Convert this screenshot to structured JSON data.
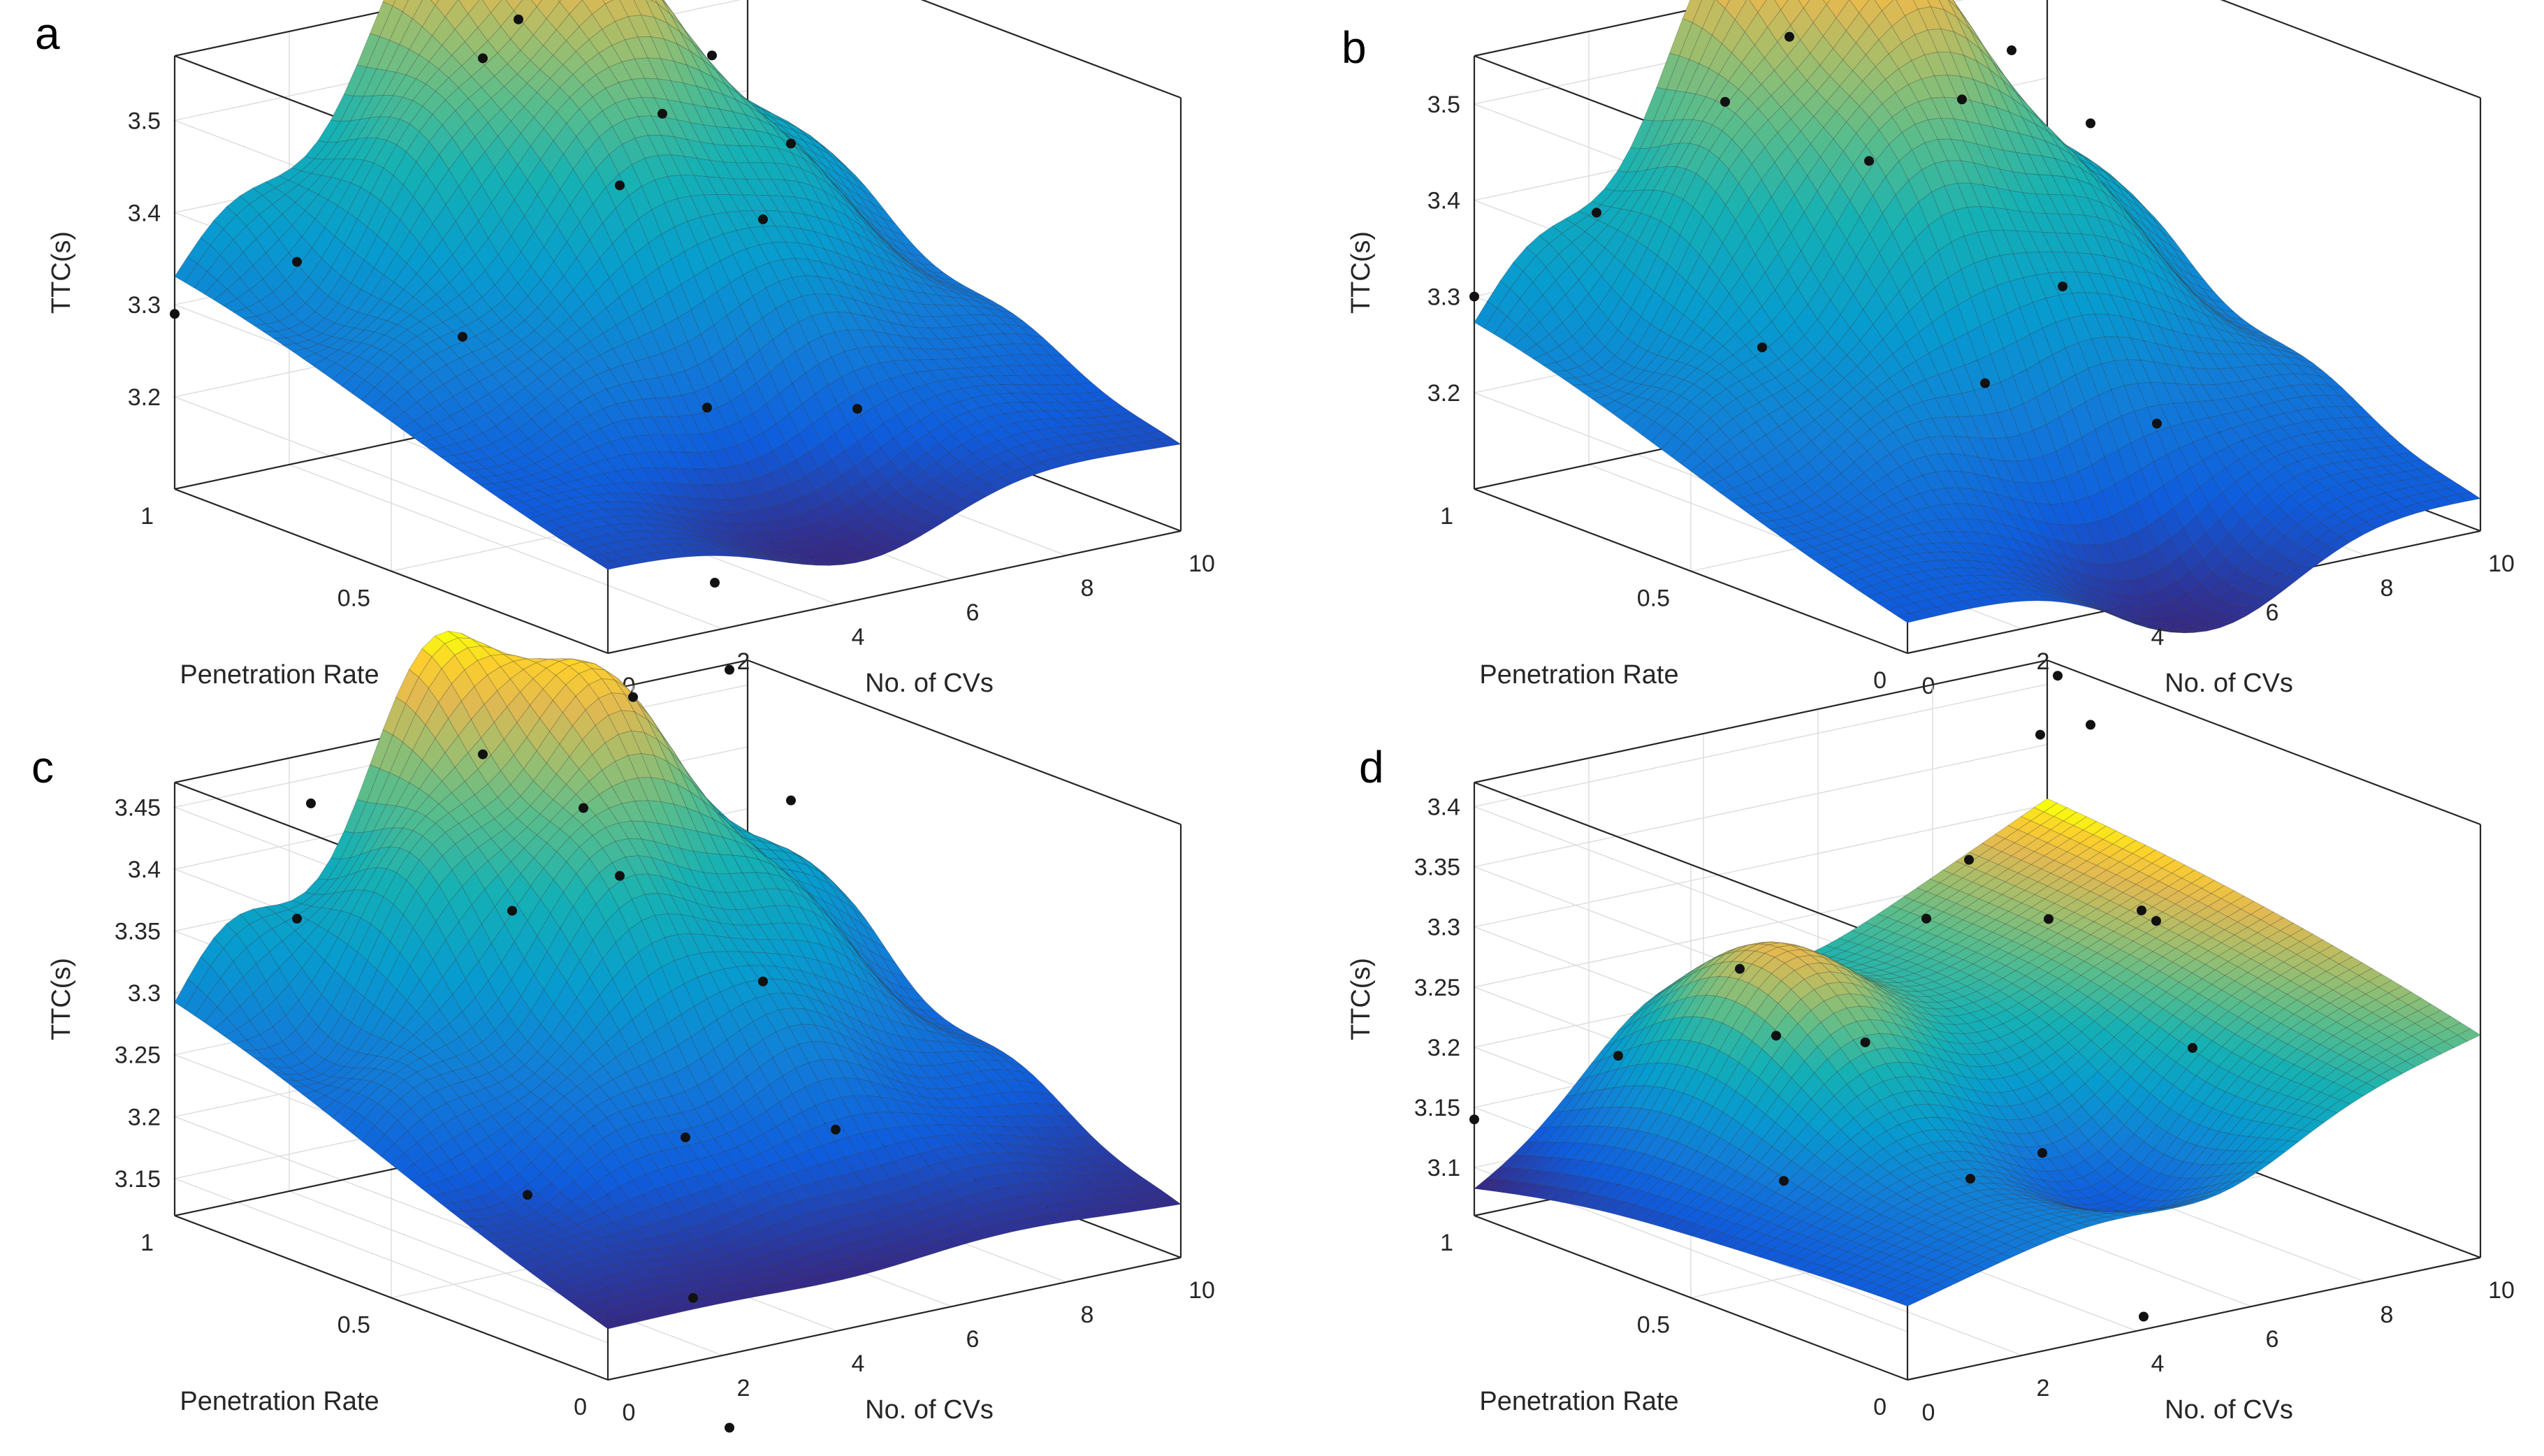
{
  "figure": {
    "panels": [
      "a",
      "b",
      "c",
      "d"
    ]
  },
  "chart_data": [
    {
      "panel": "a",
      "type": "surface3d",
      "xlabel": "No. of CVs",
      "ylabel": "Penetration Rate",
      "zlabel": "TTC(s)",
      "xlim": [
        0,
        10
      ],
      "ylim": [
        0,
        1
      ],
      "zlim": [
        3.1,
        3.57
      ],
      "xticks": [
        0,
        2,
        4,
        6,
        8,
        10
      ],
      "yticks": [
        0,
        0.5,
        1
      ],
      "zticks": [
        3.2,
        3.3,
        3.4,
        3.5
      ],
      "surface": {
        "base": 3.19,
        "peak_height": 0.37,
        "ridge_drop": 0.1,
        "valley_shift": 0.0
      },
      "points": [
        {
          "x": 0,
          "y": 1,
          "z": 3.29
        },
        {
          "x": 1,
          "y": 0.85,
          "z": 3.36
        },
        {
          "x": 2,
          "y": 0.6,
          "z": 3.31
        },
        {
          "x": 5,
          "y": 0.95,
          "z": 3.51
        },
        {
          "x": 5.5,
          "y": 0.7,
          "z": 3.41
        },
        {
          "x": 6,
          "y": 1,
          "z": 3.53
        },
        {
          "x": 7,
          "y": 0.8,
          "z": 3.45
        },
        {
          "x": 4,
          "y": 0.3,
          "z": 3.26
        },
        {
          "x": 3,
          "y": 0.15,
          "z": 3.11
        },
        {
          "x": 2.5,
          "y": 0.05,
          "z": 3.04
        },
        {
          "x": 8,
          "y": 0.7,
          "z": 3.34
        },
        {
          "x": 7,
          "y": 0.35,
          "z": 3.21
        },
        {
          "x": 9,
          "y": 0.95,
          "z": 3.46
        },
        {
          "x": 10,
          "y": 0.9,
          "z": 3.36
        },
        {
          "x": 8,
          "y": 1,
          "z": 3.59
        }
      ]
    },
    {
      "panel": "b",
      "type": "surface3d",
      "xlabel": "No. of CVs",
      "ylabel": "Penetration Rate",
      "zlabel": "TTC(s)",
      "xlim": [
        0,
        10
      ],
      "ylim": [
        0,
        1
      ],
      "zlim": [
        3.1,
        3.55
      ],
      "xticks": [
        0,
        2,
        4,
        6,
        8,
        10
      ],
      "yticks": [
        0,
        0.5,
        1
      ],
      "zticks": [
        3.2,
        3.3,
        3.4,
        3.5
      ],
      "surface": {
        "base": 3.13,
        "peak_height": 0.4,
        "ridge_drop": 0.14,
        "valley_shift": 0.08
      },
      "points": [
        {
          "x": 0,
          "y": 1,
          "z": 3.3
        },
        {
          "x": 1,
          "y": 0.85,
          "z": 3.4
        },
        {
          "x": 2,
          "y": 0.6,
          "z": 3.29
        },
        {
          "x": 4,
          "y": 0.95,
          "z": 3.46
        },
        {
          "x": 5,
          "y": 0.75,
          "z": 3.42
        },
        {
          "x": 5.5,
          "y": 1,
          "z": 3.5
        },
        {
          "x": 7,
          "y": 0.8,
          "z": 3.45
        },
        {
          "x": 4,
          "y": 0.35,
          "z": 3.27
        },
        {
          "x": 3,
          "y": 0.05,
          "z": 3.03
        },
        {
          "x": 7,
          "y": 0.35,
          "z": 3.19
        },
        {
          "x": 8,
          "y": 0.7,
          "z": 3.26
        },
        {
          "x": 9,
          "y": 0.95,
          "z": 3.45
        },
        {
          "x": 10,
          "y": 0.9,
          "z": 3.37
        },
        {
          "x": 8,
          "y": 1,
          "z": 3.56
        },
        {
          "x": 7,
          "y": 1,
          "z": 3.54
        }
      ]
    },
    {
      "panel": "c",
      "type": "surface3d",
      "xlabel": "No. of CVs",
      "ylabel": "Penetration Rate",
      "zlabel": "TTC(s)",
      "xlim": [
        0,
        10
      ],
      "ylim": [
        0,
        1
      ],
      "zlim": [
        3.12,
        3.47
      ],
      "xticks": [
        0,
        2,
        4,
        6,
        8,
        10
      ],
      "yticks": [
        0,
        0.5,
        1
      ],
      "zticks": [
        3.15,
        3.2,
        3.25,
        3.3,
        3.35,
        3.4,
        3.45
      ],
      "surface": {
        "base": 3.16,
        "peak_height": 0.27,
        "ridge_drop": 0.02,
        "valley_shift": 0.0
      },
      "points": [
        {
          "x": 1,
          "y": 0.85,
          "z": 3.37
        },
        {
          "x": 2,
          "y": 0.95,
          "z": 3.44
        },
        {
          "x": 4,
          "y": 0.75,
          "z": 3.36
        },
        {
          "x": 5,
          "y": 0.95,
          "z": 3.45
        },
        {
          "x": 5.5,
          "y": 0.7,
          "z": 3.38
        },
        {
          "x": 6,
          "y": 0.85,
          "z": 3.41
        },
        {
          "x": 8,
          "y": 1,
          "z": 3.46
        },
        {
          "x": 2,
          "y": 0.45,
          "z": 3.19
        },
        {
          "x": 3,
          "y": 0.2,
          "z": 3.13
        },
        {
          "x": 4,
          "y": 0.35,
          "z": 3.23
        },
        {
          "x": 2.5,
          "y": 0.05,
          "z": 3.05
        },
        {
          "x": 7,
          "y": 0.4,
          "z": 3.2
        },
        {
          "x": 8,
          "y": 0.7,
          "z": 3.27
        },
        {
          "x": 10,
          "y": 0.9,
          "z": 3.37
        }
      ]
    },
    {
      "panel": "d",
      "type": "surface3d",
      "xlabel": "No. of CVs",
      "ylabel": "Penetration Rate",
      "zlabel": "TTC(s)",
      "xlim": [
        0,
        10
      ],
      "ylim": [
        0,
        1
      ],
      "zlim": [
        3.06,
        3.42
      ],
      "xticks": [
        0,
        2,
        4,
        6,
        8,
        10
      ],
      "yticks": [
        0,
        0.5,
        1
      ],
      "zticks": [
        3.1,
        3.15,
        3.2,
        3.25,
        3.3,
        3.35,
        3.4
      ],
      "surface": {
        "base": 3.08,
        "tilt": 0.3,
        "bump": 0.12
      },
      "points": [
        {
          "x": 0,
          "y": 1,
          "z": 3.14
        },
        {
          "x": 1,
          "y": 0.8,
          "z": 3.21
        },
        {
          "x": 2,
          "y": 0.55,
          "z": 3.13
        },
        {
          "x": 3,
          "y": 0.7,
          "z": 3.22
        },
        {
          "x": 3.5,
          "y": 0.85,
          "z": 3.25
        },
        {
          "x": 3.8,
          "y": 0.6,
          "z": 3.22
        },
        {
          "x": 4.5,
          "y": 0.45,
          "z": 3.12
        },
        {
          "x": 5,
          "y": 0.35,
          "z": 3.15
        },
        {
          "x": 4.5,
          "y": 0.05,
          "z": 3.06
        },
        {
          "x": 6,
          "y": 0.75,
          "z": 3.28
        },
        {
          "x": 7,
          "y": 0.6,
          "z": 3.29
        },
        {
          "x": 7.5,
          "y": 0.85,
          "z": 3.3
        },
        {
          "x": 8,
          "y": 0.4,
          "z": 3.2
        },
        {
          "x": 9,
          "y": 0.65,
          "z": 3.27
        },
        {
          "x": 9.5,
          "y": 0.95,
          "z": 3.37
        },
        {
          "x": 10,
          "y": 0.9,
          "z": 3.38
        },
        {
          "x": 8.5,
          "y": 0.55,
          "z": 3.28
        }
      ]
    }
  ]
}
